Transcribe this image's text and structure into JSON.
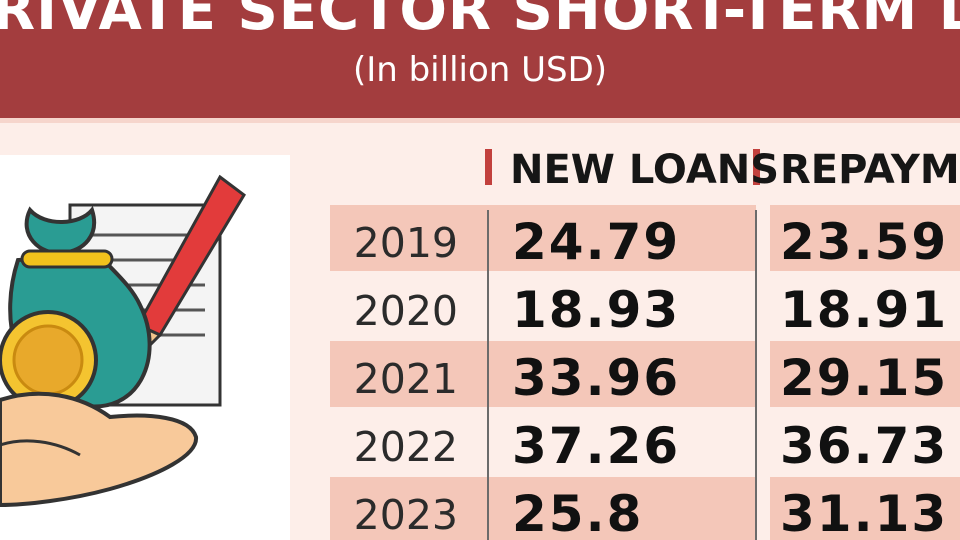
{
  "header": {
    "title": "RIVATE SECTOR SHORT-TERM LOA",
    "subtitle": "(In billion USD)"
  },
  "colors": {
    "header_bg": "#a33d3e",
    "page_bg": "#fdeee9",
    "band_dark": "#f4c7b9",
    "band_light": "#fbe1d8",
    "accent": "#c2403d"
  },
  "illustration": {
    "icons": [
      "money-bag-icon",
      "coin-icon",
      "hand-icon",
      "document-icon",
      "pen-icon"
    ]
  },
  "chart_data": {
    "type": "table",
    "columns": [
      "NEW LOANS",
      "REPAYME"
    ],
    "categories": [
      "2019",
      "2020",
      "2021",
      "2022",
      "2023"
    ],
    "series": [
      {
        "name": "NEW LOANS",
        "values": [
          24.79,
          18.93,
          33.96,
          37.26,
          25.8
        ],
        "labels": [
          "24.79",
          "18.93",
          "33.96",
          "37.26",
          "25.8"
        ]
      },
      {
        "name": "REPAYME",
        "values": [
          23.59,
          18.91,
          29.15,
          36.73,
          31.13
        ],
        "labels": [
          "23.59",
          "18.91",
          "29.15",
          "36.73",
          "31.13"
        ]
      }
    ]
  }
}
